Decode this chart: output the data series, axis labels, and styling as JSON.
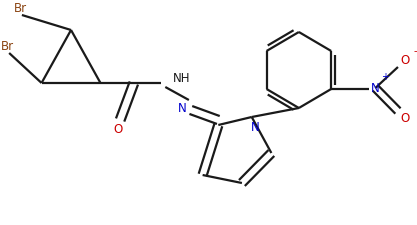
{
  "bg_color": "#ffffff",
  "line_color": "#1a1a1a",
  "bond_lw": 1.6,
  "br_color": "#8B4513",
  "n_color": "#0000cd",
  "o_color": "#cc0000",
  "figsize": [
    4.17,
    2.26
  ],
  "dpi": 100,
  "xlim": [
    0,
    4.17
  ],
  "ylim": [
    0,
    2.26
  ]
}
